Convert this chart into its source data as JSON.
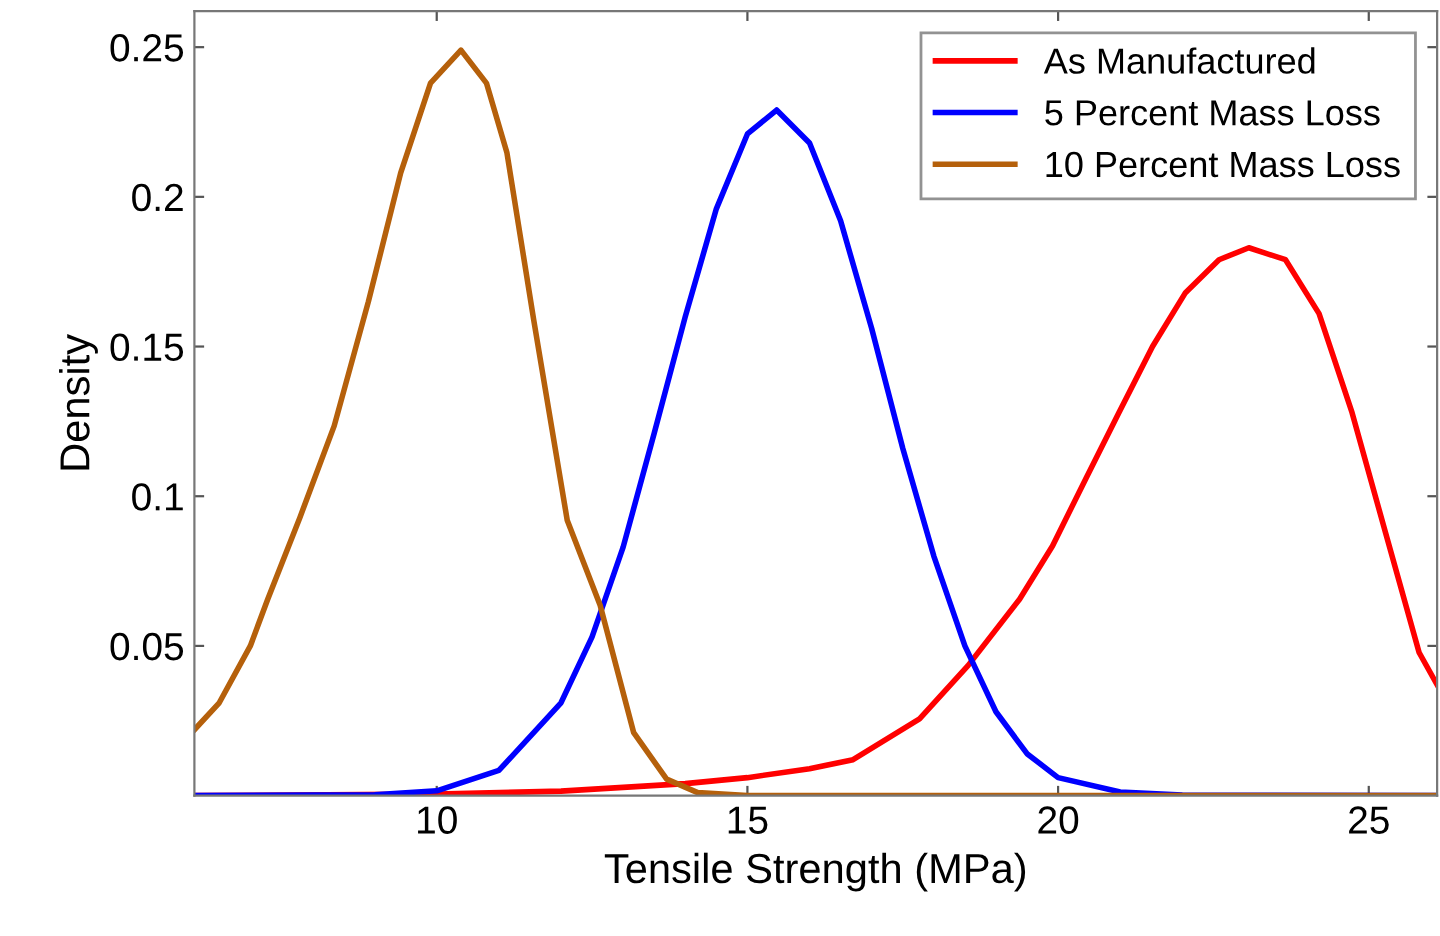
{
  "chart_data": {
    "type": "line",
    "xlabel": "Tensile Strength (MPa)",
    "ylabel": "Density",
    "xlim": [
      6.1,
      26.1
    ],
    "ylim": [
      0,
      0.262
    ],
    "xticks": [
      10,
      15,
      20,
      25
    ],
    "yticks": [
      0.05,
      0.1,
      0.15,
      0.2,
      0.25
    ],
    "grid": false,
    "legend": "top right",
    "line_style": "solid",
    "marker": "none",
    "series": [
      {
        "name": "As Manufactured",
        "color": "#ff0000",
        "x": [
          6.1,
          10,
          12,
          14,
          15,
          16,
          16.7,
          17.77,
          18.55,
          19.38,
          19.91,
          20.45,
          20.98,
          21.52,
          22.05,
          22.59,
          23.07,
          23.66,
          24.2,
          24.73,
          25.27,
          25.81,
          26.1
        ],
        "values": [
          0,
          0.0005,
          0.0015,
          0.004,
          0.006,
          0.009,
          0.012,
          0.0256,
          0.0434,
          0.0656,
          0.0834,
          0.106,
          0.128,
          0.15,
          0.168,
          0.179,
          0.183,
          0.179,
          0.161,
          0.128,
          0.0878,
          0.0478,
          0.037
        ]
      },
      {
        "name": "5 Percent Mass Loss",
        "color": "#0000ff",
        "x": [
          6.1,
          9,
          10,
          11,
          12,
          12.5,
          13,
          13.5,
          14,
          14.5,
          15,
          15.47,
          16,
          16.5,
          17,
          17.5,
          18,
          18.5,
          19,
          19.5,
          20,
          21,
          22,
          26.1
        ],
        "values": [
          0,
          0.0003,
          0.0016,
          0.0084,
          0.031,
          0.053,
          0.083,
          0.121,
          0.16,
          0.196,
          0.221,
          0.229,
          0.218,
          0.192,
          0.156,
          0.116,
          0.08,
          0.05,
          0.028,
          0.014,
          0.006,
          0.0012,
          0.0002,
          0
        ]
      },
      {
        "name": "10 Percent Mass Loss",
        "color": "#b5600b",
        "x": [
          6.1,
          6.5,
          7,
          7.28,
          7.8,
          8.35,
          8.9,
          9.42,
          9.9,
          10.39,
          10.8,
          11.13,
          11.56,
          12.1,
          12.63,
          13.17,
          13.7,
          14.2,
          15,
          26.1
        ],
        "values": [
          0.022,
          0.031,
          0.05,
          0.0656,
          0.093,
          0.1235,
          0.165,
          0.208,
          0.238,
          0.249,
          0.238,
          0.2147,
          0.159,
          0.092,
          0.0636,
          0.021,
          0.0055,
          0.001,
          0,
          0
        ]
      }
    ]
  }
}
